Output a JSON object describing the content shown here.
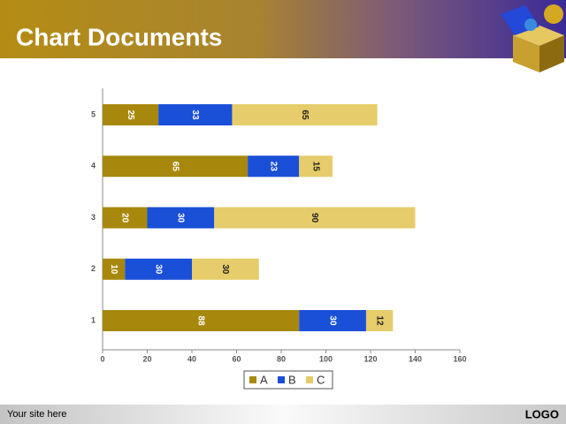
{
  "header": {
    "title": "Chart Documents"
  },
  "footer": {
    "site": "Your site here",
    "logo": "LOGO"
  },
  "chart_data": {
    "type": "hbar_stacked",
    "categories": [
      "1",
      "2",
      "3",
      "4",
      "5"
    ],
    "series": [
      {
        "name": "A",
        "color": "#a8880c",
        "values": [
          88,
          10,
          20,
          65,
          25
        ]
      },
      {
        "name": "B",
        "color": "#1a4fd8",
        "values": [
          30,
          30,
          30,
          23,
          33
        ]
      },
      {
        "name": "C",
        "color": "#e6cc6a",
        "values": [
          12,
          30,
          90,
          15,
          65
        ]
      }
    ],
    "xlim": [
      0,
      160
    ],
    "xticks": [
      0,
      20,
      40,
      60,
      80,
      100,
      120,
      140,
      160
    ],
    "legend": "bottom"
  }
}
